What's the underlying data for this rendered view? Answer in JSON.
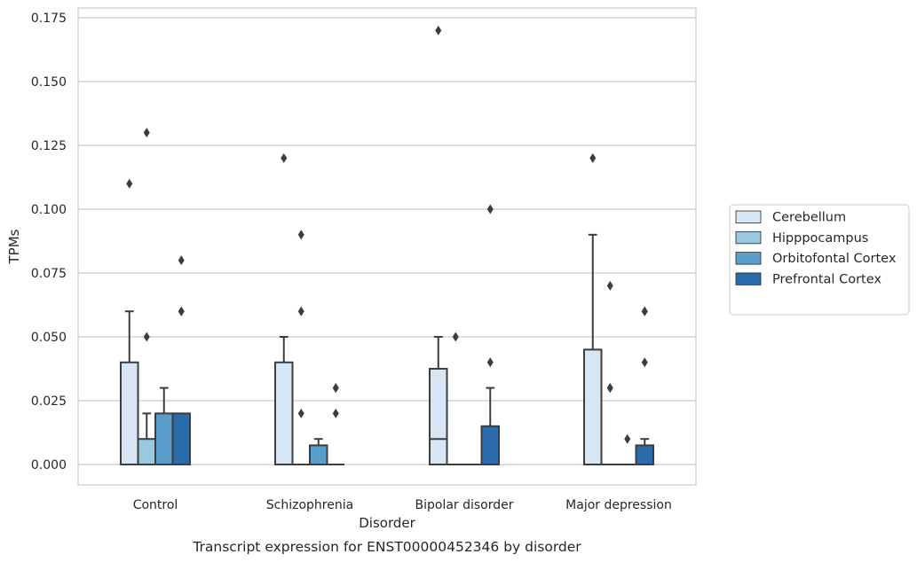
{
  "caption": "Transcript expression for ENST00000452346 by disorder",
  "chart_data": {
    "type": "box",
    "xlabel": "Disorder",
    "ylabel": "TPMs",
    "ylim": [
      -0.008,
      0.179
    ],
    "yticks": [
      "0.000",
      "0.025",
      "0.050",
      "0.075",
      "0.100",
      "0.125",
      "0.150",
      "0.175"
    ],
    "grid": "horizontal",
    "legend_placement": "right",
    "categories": [
      "Control",
      "Schizophrenia",
      "Bipolar disorder",
      "Major depression"
    ],
    "series": [
      {
        "name": "Cerebellum",
        "color": "#d6e6f4",
        "boxes": [
          {
            "q1": 0.0,
            "median": 0.0,
            "q3": 0.04,
            "whisker_low": 0.0,
            "whisker_high": 0.06,
            "outliers": [
              0.11
            ]
          },
          {
            "q1": 0.0,
            "median": 0.0,
            "q3": 0.04,
            "whisker_low": 0.0,
            "whisker_high": 0.05,
            "outliers": [
              0.12
            ]
          },
          {
            "q1": 0.0,
            "median": 0.01,
            "q3": 0.0375,
            "whisker_low": 0.0,
            "whisker_high": 0.05,
            "outliers": [
              0.17
            ]
          },
          {
            "q1": 0.0,
            "median": 0.0,
            "q3": 0.045,
            "whisker_low": 0.0,
            "whisker_high": 0.09,
            "outliers": [
              0.12
            ]
          }
        ]
      },
      {
        "name": "Hipppocampus",
        "color": "#9ac8e0",
        "boxes": [
          {
            "q1": 0.0,
            "median": 0.0,
            "q3": 0.01,
            "whisker_low": 0.0,
            "whisker_high": 0.02,
            "outliers": [
              0.05,
              0.13
            ]
          },
          {
            "q1": 0.0,
            "median": 0.0,
            "q3": 0.0,
            "whisker_low": 0.0,
            "whisker_high": 0.0,
            "outliers": [
              0.02,
              0.06,
              0.09
            ]
          },
          {
            "q1": 0.0,
            "median": 0.0,
            "q3": 0.0,
            "whisker_low": 0.0,
            "whisker_high": 0.0,
            "outliers": [
              0.05
            ]
          },
          {
            "q1": 0.0,
            "median": 0.0,
            "q3": 0.0,
            "whisker_low": 0.0,
            "whisker_high": 0.0,
            "outliers": [
              0.03,
              0.03,
              0.07
            ]
          }
        ]
      },
      {
        "name": "Orbitofontal Cortex",
        "color": "#5a9fcb",
        "boxes": [
          {
            "q1": 0.0,
            "median": 0.0,
            "q3": 0.02,
            "whisker_low": 0.0,
            "whisker_high": 0.03,
            "outliers": []
          },
          {
            "q1": 0.0,
            "median": 0.0,
            "q3": 0.0075,
            "whisker_low": 0.0,
            "whisker_high": 0.01,
            "outliers": []
          },
          {
            "q1": 0.0,
            "median": 0.0,
            "q3": 0.0,
            "whisker_low": 0.0,
            "whisker_high": 0.0,
            "outliers": []
          },
          {
            "q1": 0.0,
            "median": 0.0,
            "q3": 0.0,
            "whisker_low": 0.0,
            "whisker_high": 0.0,
            "outliers": [
              0.01
            ]
          }
        ]
      },
      {
        "name": "Prefrontal Cortex",
        "color": "#2b6ba9",
        "boxes": [
          {
            "q1": 0.0,
            "median": 0.0,
            "q3": 0.02,
            "whisker_low": 0.0,
            "whisker_high": 0.02,
            "outliers": [
              0.06,
              0.06,
              0.08
            ]
          },
          {
            "q1": 0.0,
            "median": 0.0,
            "q3": 0.0,
            "whisker_low": 0.0,
            "whisker_high": 0.0,
            "outliers": [
              0.02,
              0.03,
              0.03
            ]
          },
          {
            "q1": 0.0,
            "median": 0.0,
            "q3": 0.015,
            "whisker_low": 0.0,
            "whisker_high": 0.03,
            "outliers": [
              0.04,
              0.1
            ]
          },
          {
            "q1": 0.0,
            "median": 0.0,
            "q3": 0.0075,
            "whisker_low": 0.0,
            "whisker_high": 0.01,
            "outliers": [
              0.04,
              0.06,
              0.06
            ]
          }
        ]
      }
    ]
  }
}
